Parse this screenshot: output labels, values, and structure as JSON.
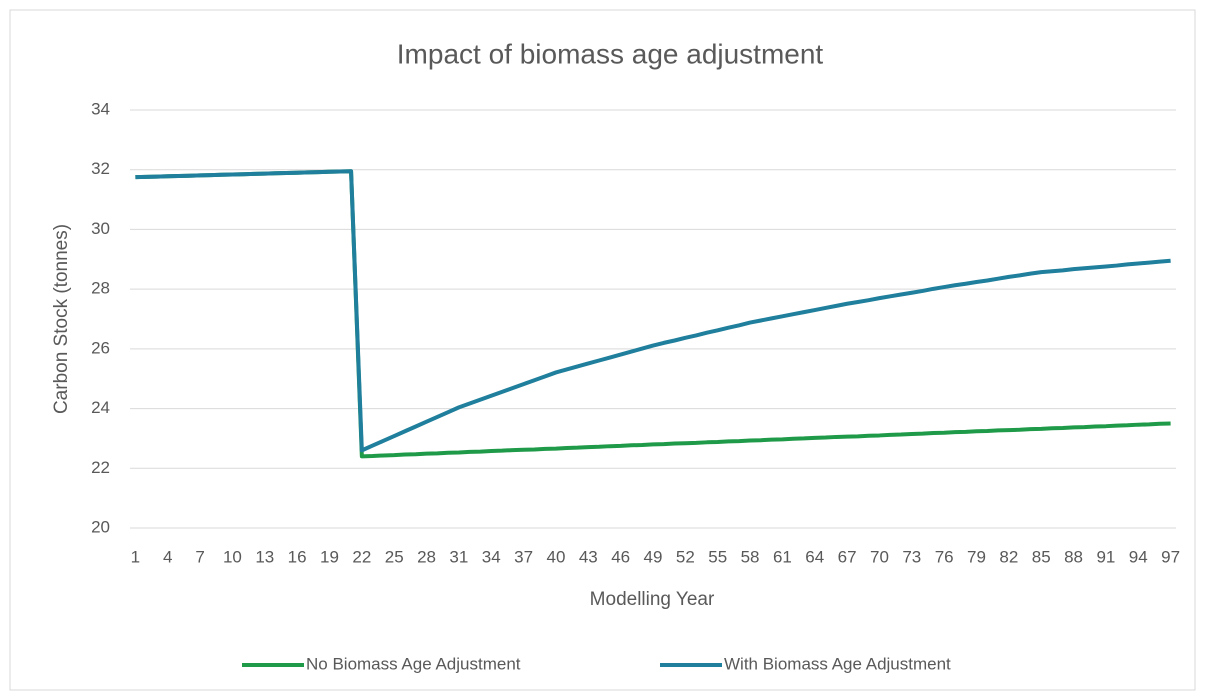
{
  "chart_data": {
    "type": "line",
    "title": "Impact of biomass age adjustment",
    "x_label": "Modelling Year",
    "y_label": "Carbon Stock (tonnes)",
    "categories": [
      1,
      null,
      null,
      4,
      null,
      null,
      7,
      null,
      null,
      10,
      null,
      null,
      13,
      null,
      null,
      16,
      null,
      null,
      19,
      null,
      null,
      22,
      null,
      null,
      25,
      null,
      null,
      28,
      null,
      null,
      31,
      null,
      null,
      34,
      null,
      null,
      37,
      null,
      null,
      40,
      null,
      null,
      43,
      null,
      null,
      46,
      null,
      null,
      49,
      null,
      null,
      52,
      null,
      null,
      55,
      null,
      null,
      58,
      null,
      null,
      61,
      null,
      null,
      64,
      null,
      null,
      67,
      null,
      null,
      70,
      null,
      null,
      73,
      null,
      null,
      76,
      null,
      null,
      79,
      null,
      null,
      82,
      null,
      null,
      85,
      null,
      null,
      88,
      null,
      null,
      91,
      null,
      null,
      94,
      null,
      null,
      97
    ],
    "series": [
      {
        "name": "No Biomass Age Adjustment",
        "color": "#1f9a48",
        "values": [
          31.75,
          31.76,
          31.77,
          31.78,
          31.79,
          31.8,
          31.81,
          31.82,
          31.83,
          31.84,
          31.85,
          31.86,
          31.87,
          31.88,
          31.89,
          31.9,
          31.91,
          31.92,
          31.93,
          31.94,
          31.95,
          22.4,
          22.41,
          22.43,
          22.44,
          22.46,
          22.47,
          22.49,
          22.5,
          22.52,
          22.53,
          22.55,
          22.56,
          22.58,
          22.59,
          22.61,
          22.62,
          22.63,
          22.65,
          22.66,
          22.68,
          22.69,
          22.71,
          22.72,
          22.74,
          22.75,
          22.77,
          22.78,
          22.8,
          22.81,
          22.83,
          22.84,
          22.85,
          22.87,
          22.88,
          22.9,
          22.91,
          22.93,
          22.94,
          22.96,
          22.97,
          22.99,
          23.0,
          23.02,
          23.03,
          23.05,
          23.06,
          23.07,
          23.09,
          23.1,
          23.12,
          23.13,
          23.15,
          23.16,
          23.18,
          23.19,
          23.21,
          23.22,
          23.24,
          23.25,
          23.27,
          23.28,
          23.29,
          23.31,
          23.32,
          23.34,
          23.35,
          23.37,
          23.38,
          23.4,
          23.41,
          23.43,
          23.44,
          23.46,
          23.47,
          23.49,
          23.5
        ]
      },
      {
        "name": "With Biomass Age Adjustment",
        "color": "#1f7f9c",
        "values": [
          31.75,
          31.76,
          31.77,
          31.78,
          31.79,
          31.8,
          31.81,
          31.82,
          31.83,
          31.84,
          31.85,
          31.86,
          31.87,
          31.88,
          31.89,
          31.9,
          31.91,
          31.92,
          31.93,
          31.94,
          31.95,
          22.6,
          22.76,
          22.92,
          23.08,
          23.24,
          23.4,
          23.56,
          23.72,
          23.88,
          24.04,
          24.17,
          24.3,
          24.43,
          24.56,
          24.69,
          24.82,
          24.95,
          25.08,
          25.21,
          25.31,
          25.41,
          25.51,
          25.61,
          25.71,
          25.81,
          25.91,
          26.01,
          26.11,
          26.2,
          26.28,
          26.37,
          26.45,
          26.54,
          26.62,
          26.71,
          26.79,
          26.88,
          26.95,
          27.02,
          27.09,
          27.16,
          27.23,
          27.3,
          27.37,
          27.44,
          27.51,
          27.57,
          27.63,
          27.7,
          27.76,
          27.82,
          27.88,
          27.94,
          28.01,
          28.07,
          28.13,
          28.18,
          28.24,
          28.29,
          28.35,
          28.41,
          28.46,
          28.52,
          28.57,
          28.6,
          28.63,
          28.67,
          28.7,
          28.73,
          28.76,
          28.79,
          28.83,
          28.86,
          28.89,
          28.92,
          28.95
        ]
      }
    ],
    "ylim": [
      20,
      34
    ],
    "yticks": [
      20,
      22,
      24,
      26,
      28,
      30,
      32,
      34
    ],
    "grid": true,
    "legend": "bottom"
  }
}
